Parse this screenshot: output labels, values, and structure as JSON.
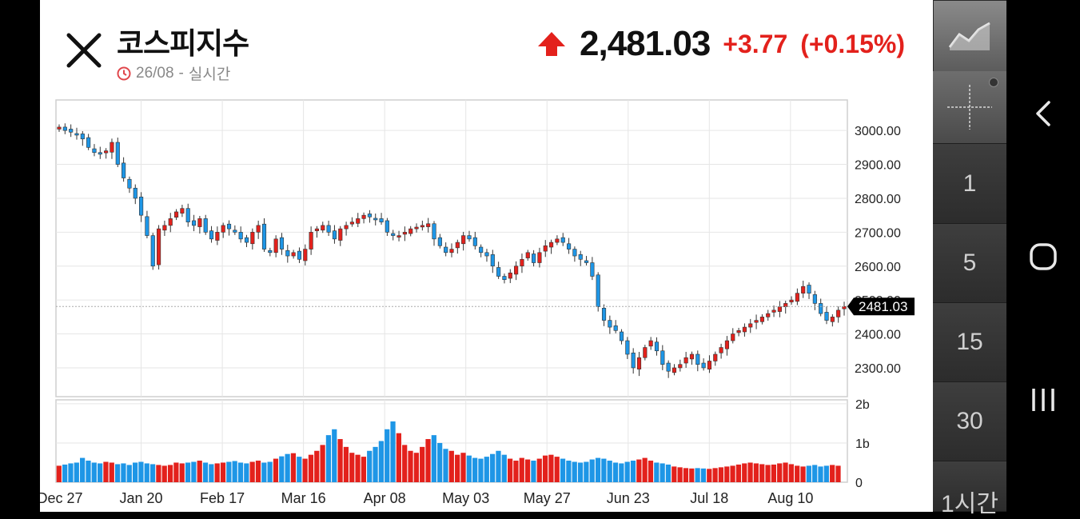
{
  "header": {
    "title": "코스피지수",
    "date": "26/08",
    "separator": "-",
    "mode": "실시간",
    "price": "2,481.03",
    "change": "+3.77",
    "change_pct": "(+0.15%)"
  },
  "colors": {
    "up": "#e3211c",
    "down": "#1e96e6",
    "grid": "#e6e6e6"
  },
  "sidebar": {
    "periods": [
      {
        "label": "1"
      },
      {
        "label": "5"
      },
      {
        "label": "15"
      },
      {
        "label": "30"
      },
      {
        "label": "1시간"
      }
    ]
  },
  "chart_data": {
    "type": "candlestick",
    "current_price_label": "2481.03",
    "current_price": 2481.03,
    "y_ticks": [
      "3000.00",
      "2900.00",
      "2800.00",
      "2700.00",
      "2600.00",
      "2500.00",
      "2400.00",
      "2300.00"
    ],
    "y_tick_values": [
      3000,
      2900,
      2800,
      2700,
      2600,
      2500,
      2400,
      2300
    ],
    "ylim": [
      2215,
      3090
    ],
    "x_ticks": [
      "Dec 27",
      "Jan 20",
      "Feb 17",
      "Mar 16",
      "Apr 08",
      "May 03",
      "May 27",
      "Jun 23",
      "Jul 18",
      "Aug 10"
    ],
    "vol_ticks": [
      "2b",
      "1b",
      "0"
    ],
    "vol_tick_values": [
      2,
      1,
      0
    ],
    "vol_max": 2.1,
    "closes": [
      3010,
      3000,
      2995,
      2990,
      2975,
      2950,
      2935,
      2930,
      2940,
      2965,
      2900,
      2860,
      2830,
      2800,
      2750,
      2690,
      2600,
      2710,
      2720,
      2740,
      2760,
      2770,
      2730,
      2720,
      2740,
      2700,
      2680,
      2700,
      2720,
      2710,
      2700,
      2680,
      2670,
      2700,
      2720,
      2650,
      2640,
      2680,
      2650,
      2630,
      2640,
      2620,
      2650,
      2700,
      2710,
      2720,
      2700,
      2680,
      2710,
      2720,
      2730,
      2740,
      2750,
      2745,
      2740,
      2730,
      2700,
      2690,
      2690,
      2700,
      2710,
      2715,
      2720,
      2725,
      2680,
      2660,
      2640,
      2650,
      2670,
      2690,
      2680,
      2660,
      2640,
      2630,
      2600,
      2570,
      2560,
      2580,
      2600,
      2620,
      2640,
      2610,
      2640,
      2660,
      2670,
      2680,
      2670,
      2650,
      2630,
      2620,
      2610,
      2570,
      2480,
      2440,
      2420,
      2410,
      2380,
      2340,
      2300,
      2330,
      2360,
      2380,
      2350,
      2310,
      2290,
      2300,
      2310,
      2330,
      2340,
      2310,
      2300,
      2320,
      2340,
      2360,
      2380,
      2400,
      2410,
      2420,
      2430,
      2440,
      2450,
      2460,
      2470,
      2480,
      2490,
      2500,
      2520,
      2540,
      2520,
      2490,
      2460,
      2440,
      2450,
      2470,
      2481
    ],
    "volumes": [
      0.42,
      0.45,
      0.48,
      0.5,
      0.62,
      0.55,
      0.5,
      0.48,
      0.52,
      0.5,
      0.46,
      0.48,
      0.44,
      0.5,
      0.52,
      0.48,
      0.46,
      0.44,
      0.42,
      0.44,
      0.5,
      0.48,
      0.5,
      0.52,
      0.55,
      0.5,
      0.46,
      0.48,
      0.5,
      0.52,
      0.54,
      0.5,
      0.48,
      0.52,
      0.55,
      0.5,
      0.52,
      0.6,
      0.66,
      0.72,
      0.74,
      0.65,
      0.6,
      0.7,
      0.8,
      0.95,
      1.2,
      1.35,
      1.1,
      0.9,
      0.75,
      0.7,
      0.65,
      0.8,
      0.9,
      1.05,
      1.35,
      1.55,
      1.25,
      0.95,
      0.8,
      0.75,
      0.9,
      1.1,
      1.2,
      1.0,
      0.85,
      0.8,
      0.7,
      0.75,
      0.68,
      0.62,
      0.6,
      0.65,
      0.72,
      0.8,
      0.7,
      0.6,
      0.55,
      0.62,
      0.58,
      0.55,
      0.6,
      0.68,
      0.7,
      0.65,
      0.6,
      0.55,
      0.52,
      0.5,
      0.52,
      0.58,
      0.62,
      0.6,
      0.55,
      0.5,
      0.48,
      0.52,
      0.55,
      0.58,
      0.62,
      0.55,
      0.5,
      0.48,
      0.45,
      0.4,
      0.38,
      0.36,
      0.35,
      0.36,
      0.35,
      0.34,
      0.36,
      0.38,
      0.4,
      0.42,
      0.45,
      0.48,
      0.5,
      0.48,
      0.46,
      0.44,
      0.45,
      0.48,
      0.5,
      0.46,
      0.42,
      0.4,
      0.42,
      0.44,
      0.4,
      0.42,
      0.44,
      0.42
    ]
  }
}
